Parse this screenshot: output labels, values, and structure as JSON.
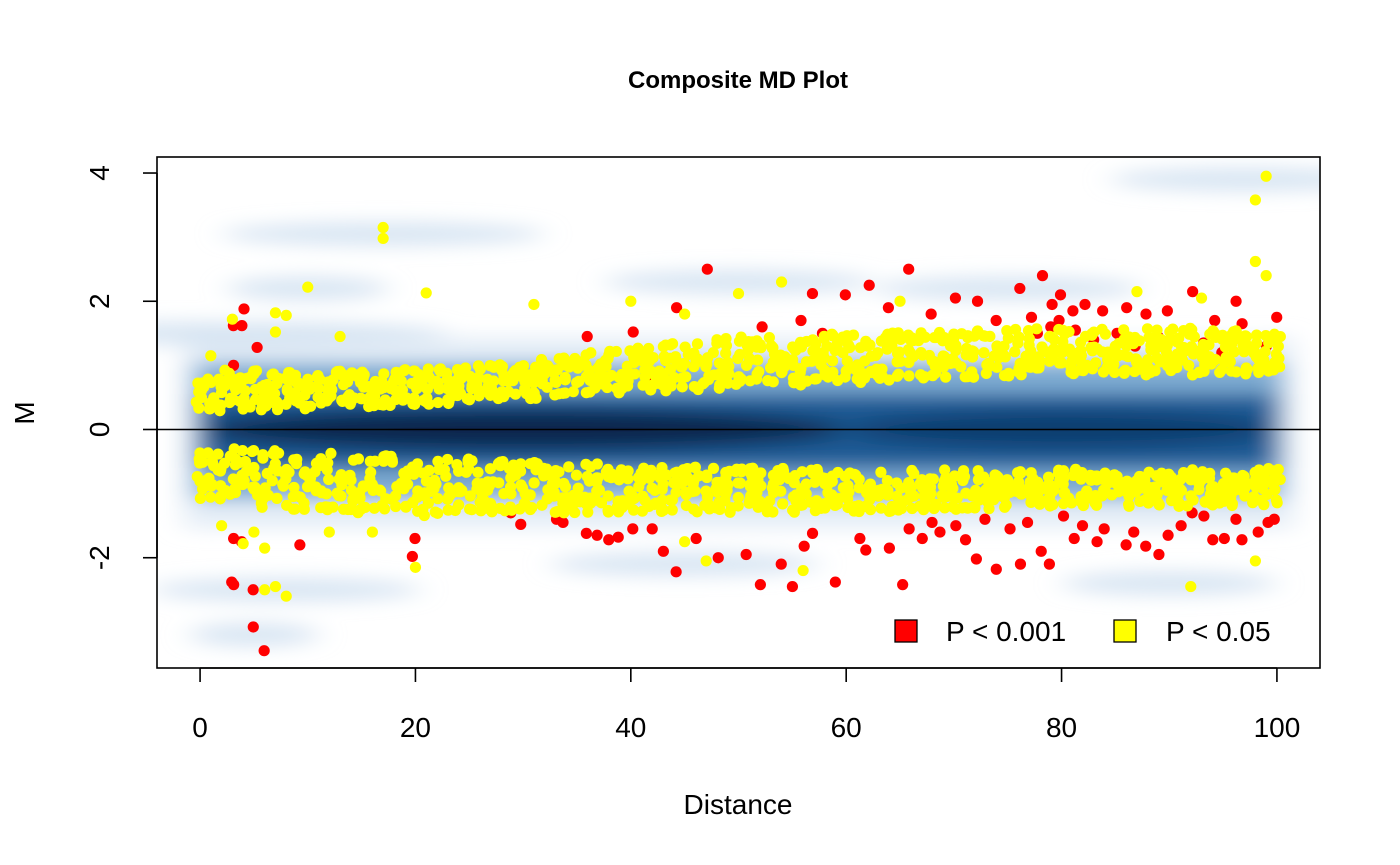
{
  "chart_data": {
    "type": "scatter",
    "title": "Composite MD Plot",
    "xlabel": "Distance",
    "ylabel": "M",
    "xlim": [
      -4,
      104
    ],
    "ylim": [
      -3.72,
      4.25
    ],
    "xticks": [
      0,
      20,
      40,
      60,
      80,
      100
    ],
    "yticks": [
      -2,
      0,
      2,
      4
    ],
    "reference_line_y": 0,
    "grid": false,
    "background": "smoothed density of all points (blue)",
    "legend": {
      "placement": "bottom-right",
      "entries": [
        {
          "label": "P < 0.001",
          "color": "#ff0000"
        },
        {
          "label": "P < 0.05",
          "color": "#ffff00"
        }
      ]
    },
    "series": [
      {
        "name": "P < 0.001",
        "color": "#ff0000",
        "points": [
          [
            3,
            1.62
          ],
          [
            4,
            1.62
          ],
          [
            4,
            1.88
          ],
          [
            5,
            1.28
          ],
          [
            3,
            1.0
          ],
          [
            47,
            2.5
          ],
          [
            66,
            2.5
          ],
          [
            78,
            2.4
          ],
          [
            76,
            2.2
          ],
          [
            72,
            2.0
          ],
          [
            70,
            2.05
          ],
          [
            80,
            2.1
          ],
          [
            82,
            1.95
          ],
          [
            84,
            1.85
          ],
          [
            86,
            1.9
          ],
          [
            88,
            1.8
          ],
          [
            90,
            1.85
          ],
          [
            92,
            2.15
          ],
          [
            94,
            1.7
          ],
          [
            96,
            2.0
          ],
          [
            97,
            1.65
          ],
          [
            100,
            1.75
          ],
          [
            62,
            2.25
          ],
          [
            64,
            1.9
          ],
          [
            57,
            2.12
          ],
          [
            60,
            2.1
          ],
          [
            44,
            1.9
          ],
          [
            40,
            1.52
          ],
          [
            36,
            1.45
          ],
          [
            42,
            0.75
          ],
          [
            52,
            1.6
          ],
          [
            56,
            1.7
          ],
          [
            58,
            1.5
          ],
          [
            68,
            1.8
          ],
          [
            74,
            1.7
          ],
          [
            79,
            1.6
          ],
          [
            81,
            1.55
          ],
          [
            83,
            1.4
          ],
          [
            85,
            1.5
          ],
          [
            87,
            1.3
          ],
          [
            89,
            1.45
          ],
          [
            91,
            1.2
          ],
          [
            93,
            1.35
          ],
          [
            95,
            1.2
          ],
          [
            99,
            1.3
          ],
          [
            77,
            1.75
          ],
          [
            79,
            1.95
          ],
          [
            80,
            1.7
          ],
          [
            81,
            1.85
          ],
          [
            78,
            1.5
          ],
          [
            3,
            -1.7
          ],
          [
            3,
            -2.38
          ],
          [
            3,
            -2.42
          ],
          [
            4,
            -1.75
          ],
          [
            5,
            -2.5
          ],
          [
            5,
            -3.08
          ],
          [
            6,
            -3.45
          ],
          [
            9,
            -1.8
          ],
          [
            20,
            -1.7
          ],
          [
            20,
            -1.98
          ],
          [
            29,
            -1.3
          ],
          [
            30,
            -1.48
          ],
          [
            33,
            -1.4
          ],
          [
            34,
            -1.45
          ],
          [
            36,
            -1.62
          ],
          [
            37,
            -1.65
          ],
          [
            38,
            -1.72
          ],
          [
            39,
            -1.68
          ],
          [
            40,
            -1.55
          ],
          [
            42,
            -1.55
          ],
          [
            43,
            -1.9
          ],
          [
            44,
            -2.22
          ],
          [
            46,
            -1.7
          ],
          [
            48,
            -2.0
          ],
          [
            51,
            -1.95
          ],
          [
            52,
            -2.42
          ],
          [
            54,
            -2.1
          ],
          [
            55,
            -2.45
          ],
          [
            56,
            -1.82
          ],
          [
            57,
            -1.62
          ],
          [
            59,
            -2.38
          ],
          [
            61,
            -1.7
          ],
          [
            62,
            -1.88
          ],
          [
            64,
            -1.85
          ],
          [
            65,
            -2.42
          ],
          [
            67,
            -1.7
          ],
          [
            69,
            -1.6
          ],
          [
            71,
            -1.72
          ],
          [
            72,
            -2.02
          ],
          [
            74,
            -2.18
          ],
          [
            76,
            -2.1
          ],
          [
            78,
            -1.9
          ],
          [
            79,
            -2.1
          ],
          [
            81,
            -1.7
          ],
          [
            83,
            -1.75
          ],
          [
            86,
            -1.8
          ],
          [
            88,
            -1.82
          ],
          [
            89,
            -1.95
          ],
          [
            91,
            -1.5
          ],
          [
            93,
            -1.35
          ],
          [
            94,
            -1.72
          ],
          [
            95,
            -1.7
          ],
          [
            97,
            -1.72
          ],
          [
            98,
            -1.6
          ],
          [
            100,
            -1.4
          ],
          [
            66,
            -1.55
          ],
          [
            68,
            -1.45
          ],
          [
            70,
            -1.5
          ],
          [
            73,
            -1.4
          ],
          [
            75,
            -1.55
          ],
          [
            77,
            -1.45
          ],
          [
            80,
            -1.35
          ],
          [
            82,
            -1.5
          ],
          [
            84,
            -1.55
          ],
          [
            87,
            -1.6
          ],
          [
            90,
            -1.65
          ],
          [
            92,
            -1.3
          ],
          [
            96,
            -1.4
          ],
          [
            99,
            -1.45
          ]
        ]
      },
      {
        "name": "P < 0.05",
        "color": "#ffff00",
        "outliers": [
          [
            17,
            3.15
          ],
          [
            17,
            2.98
          ],
          [
            10,
            2.22
          ],
          [
            21,
            2.13
          ],
          [
            31,
            1.95
          ],
          [
            40,
            2.0
          ],
          [
            45,
            1.8
          ],
          [
            50,
            2.12
          ],
          [
            54,
            2.3
          ],
          [
            65,
            2.0
          ],
          [
            87,
            2.15
          ],
          [
            93,
            2.05
          ],
          [
            98,
            3.58
          ],
          [
            99,
            3.95
          ],
          [
            98,
            2.62
          ],
          [
            99,
            2.4
          ],
          [
            3,
            1.72
          ],
          [
            8,
            1.78
          ],
          [
            7,
            1.82
          ],
          [
            1,
            1.15
          ],
          [
            7,
            1.52
          ],
          [
            13,
            1.45
          ],
          [
            5,
            -1.6
          ],
          [
            6,
            -1.85
          ],
          [
            7,
            -2.45
          ],
          [
            8,
            -2.6
          ],
          [
            6,
            -2.5
          ],
          [
            20,
            -2.15
          ],
          [
            47,
            -2.05
          ],
          [
            56,
            -2.2
          ],
          [
            92,
            -2.45
          ],
          [
            98,
            -2.05
          ],
          [
            2,
            -1.5
          ],
          [
            4,
            -1.78
          ],
          [
            12,
            -1.6
          ],
          [
            16,
            -1.6
          ],
          [
            45,
            -1.75
          ]
        ],
        "upper_band": [
          [
            0,
            0.25,
            0.95
          ],
          [
            10,
            0.32,
            0.9
          ],
          [
            20,
            0.38,
            0.95
          ],
          [
            30,
            0.45,
            1.05
          ],
          [
            40,
            0.55,
            1.3
          ],
          [
            50,
            0.65,
            1.45
          ],
          [
            60,
            0.72,
            1.5
          ],
          [
            70,
            0.8,
            1.55
          ],
          [
            80,
            0.85,
            1.6
          ],
          [
            90,
            0.85,
            1.6
          ],
          [
            100,
            0.85,
            1.5
          ]
        ],
        "lower_band": [
          [
            0,
            -0.25,
            -1.1
          ],
          [
            10,
            -0.35,
            -1.3
          ],
          [
            20,
            -0.42,
            -1.35
          ],
          [
            30,
            -0.5,
            -1.3
          ],
          [
            40,
            -0.55,
            -1.3
          ],
          [
            50,
            -0.6,
            -1.3
          ],
          [
            60,
            -0.62,
            -1.3
          ],
          [
            70,
            -0.62,
            -1.25
          ],
          [
            80,
            -0.62,
            -1.2
          ],
          [
            90,
            -0.62,
            -1.2
          ],
          [
            100,
            -0.6,
            -1.2
          ]
        ],
        "band_points_per_unit": 9
      }
    ]
  }
}
